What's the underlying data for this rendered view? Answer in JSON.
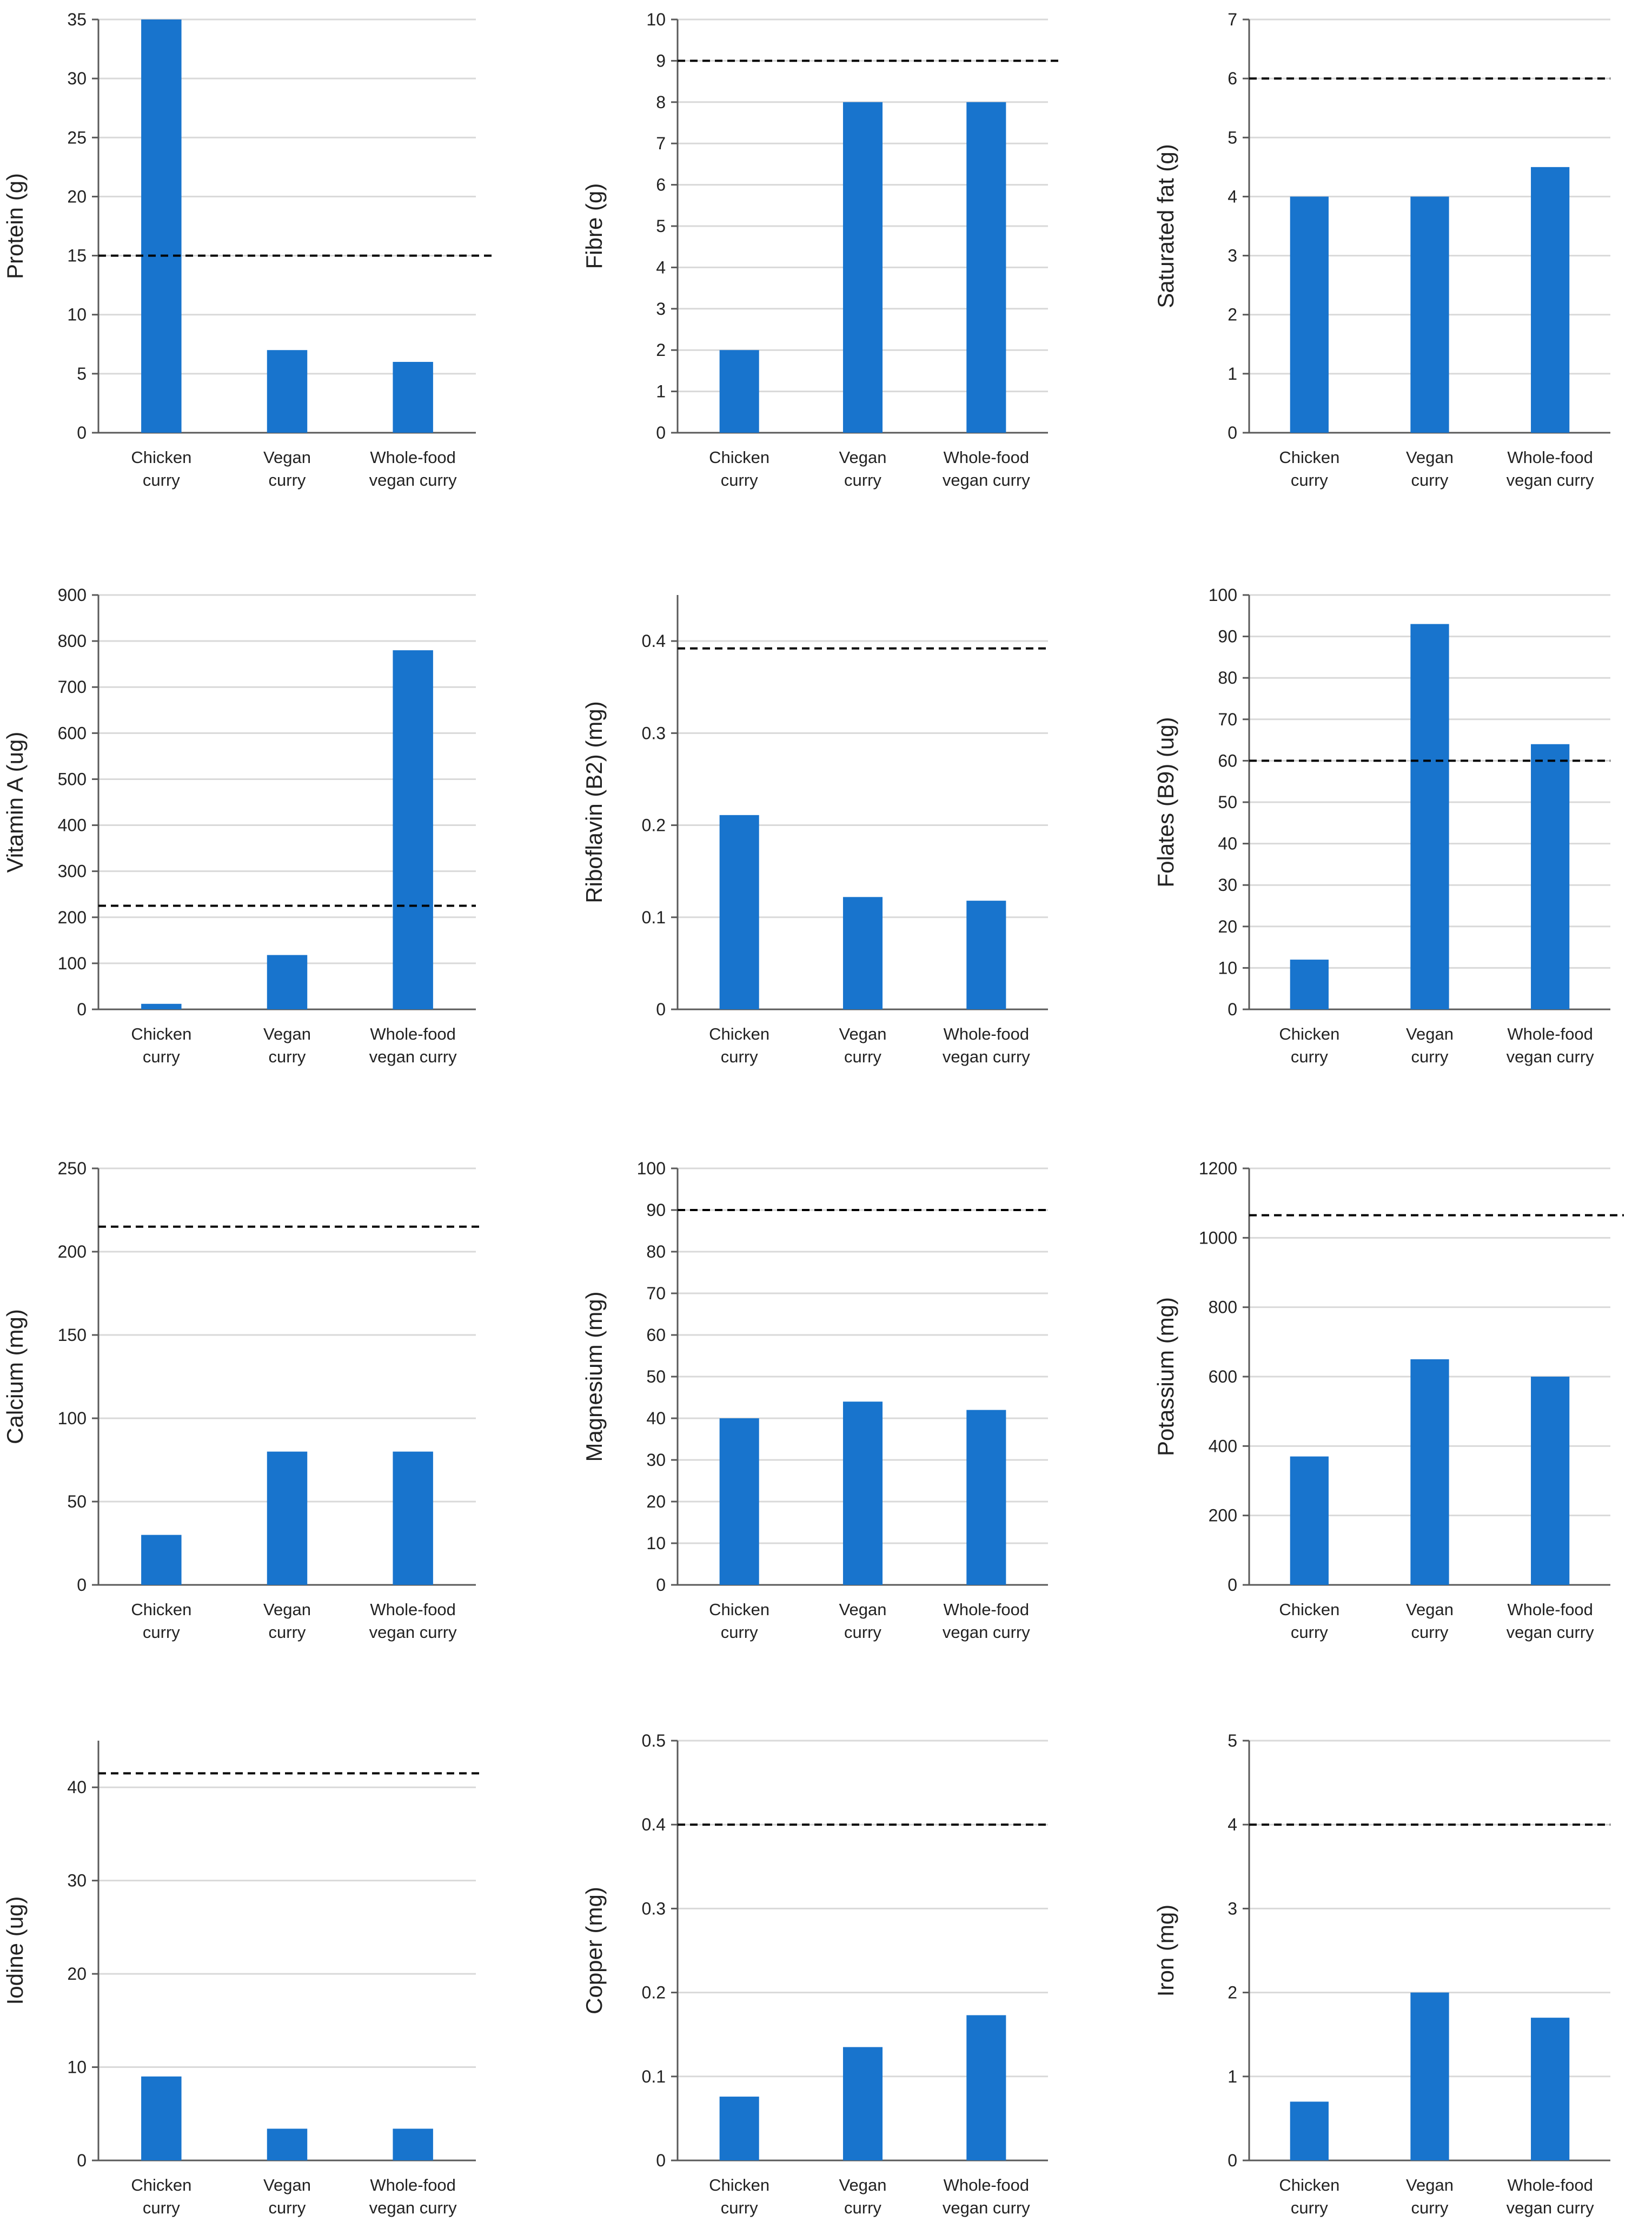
{
  "colors": {
    "bar": "#1874CD",
    "grid": "#D9D9D9",
    "axis": "#595959",
    "reference": "#000000"
  },
  "categories": [
    [
      "Chicken",
      "curry"
    ],
    [
      "Vegan",
      "curry"
    ],
    [
      "Whole-food",
      "vegan curry"
    ]
  ],
  "chart_data": [
    {
      "type": "bar",
      "ylabel": "Protein (g)",
      "categories": [
        "Chicken curry",
        "Vegan curry",
        "Whole-food vegan curry"
      ],
      "values": [
        35,
        7,
        6
      ],
      "ylim": [
        0,
        35
      ],
      "yticks": [
        "0",
        "5",
        "10",
        "15",
        "20",
        "25",
        "30",
        "35"
      ],
      "reference_line": 15
    },
    {
      "type": "bar",
      "ylabel": "Fibre (g)",
      "categories": [
        "Chicken curry",
        "Vegan curry",
        "Whole-food vegan curry"
      ],
      "values": [
        2,
        8,
        8
      ],
      "ylim": [
        0,
        10
      ],
      "yticks": [
        "0",
        "1",
        "2",
        "3",
        "4",
        "5",
        "6",
        "7",
        "8",
        "9",
        "10"
      ],
      "reference_line": 9
    },
    {
      "type": "bar",
      "ylabel": "Saturated fat (g)",
      "categories": [
        "Chicken curry",
        "Vegan curry",
        "Whole-food vegan curry"
      ],
      "values": [
        4,
        4,
        4.5
      ],
      "ylim": [
        0,
        7
      ],
      "yticks": [
        "0",
        "1",
        "2",
        "3",
        "4",
        "5",
        "6",
        "7"
      ],
      "reference_line": 6
    },
    {
      "type": "bar",
      "ylabel": "Vitamin A (ug)",
      "categories": [
        "Chicken curry",
        "Vegan curry",
        "Whole-food vegan curry"
      ],
      "values": [
        12,
        118,
        780
      ],
      "ylim": [
        0,
        900
      ],
      "yticks": [
        "0",
        "100",
        "200",
        "300",
        "400",
        "500",
        "600",
        "700",
        "800",
        "900"
      ],
      "reference_line": 225
    },
    {
      "type": "bar",
      "ylabel": "Riboflavin (B2) (mg)",
      "categories": [
        "Chicken curry",
        "Vegan curry",
        "Whole-food vegan curry"
      ],
      "values": [
        0.211,
        0.122,
        0.118
      ],
      "ylim": [
        0,
        0.45
      ],
      "yticks": [
        "0",
        "0.1",
        "0.2",
        "0.3",
        "0.4"
      ],
      "reference_line": 0.392
    },
    {
      "type": "bar",
      "ylabel": "Folates (B9)  (ug)",
      "categories": [
        "Chicken curry",
        "Vegan curry",
        "Whole-food vegan curry"
      ],
      "values": [
        12,
        93,
        64
      ],
      "ylim": [
        0,
        100
      ],
      "yticks": [
        "0",
        "10",
        "20",
        "30",
        "40",
        "50",
        "60",
        "70",
        "80",
        "90",
        "100"
      ],
      "reference_line": 60
    },
    {
      "type": "bar",
      "ylabel": "Calcium (mg)",
      "categories": [
        "Chicken curry",
        "Vegan curry",
        "Whole-food vegan curry"
      ],
      "values": [
        30,
        80,
        80
      ],
      "ylim": [
        0,
        250
      ],
      "yticks": [
        "0",
        "50",
        "100",
        "150",
        "200",
        "250"
      ],
      "reference_line": 215
    },
    {
      "type": "bar",
      "ylabel": "Magnesium (mg)",
      "categories": [
        "Chicken curry",
        "Vegan curry",
        "Whole-food vegan curry"
      ],
      "values": [
        40,
        44,
        42
      ],
      "ylim": [
        0,
        100
      ],
      "yticks": [
        "0",
        "10",
        "20",
        "30",
        "40",
        "50",
        "60",
        "70",
        "80",
        "90",
        "100"
      ],
      "reference_line": 90
    },
    {
      "type": "bar",
      "ylabel": "Potassium (mg)",
      "categories": [
        "Chicken curry",
        "Vegan curry",
        "Whole-food vegan curry"
      ],
      "values": [
        370,
        650,
        600
      ],
      "ylim": [
        0,
        1200
      ],
      "yticks": [
        "0",
        "200",
        "400",
        "600",
        "800",
        "1000",
        "1200"
      ],
      "reference_line": 1065
    },
    {
      "type": "bar",
      "ylabel": "Iodine (ug)",
      "categories": [
        "Chicken curry",
        "Vegan curry",
        "Whole-food vegan curry"
      ],
      "values": [
        9,
        3.4,
        3.4
      ],
      "ylim": [
        0,
        45
      ],
      "yticks": [
        "0",
        "10",
        "20",
        "30",
        "40"
      ],
      "reference_line": 41.5
    },
    {
      "type": "bar",
      "ylabel": "Copper (mg)",
      "categories": [
        "Chicken curry",
        "Vegan curry",
        "Whole-food vegan curry"
      ],
      "values": [
        0.076,
        0.135,
        0.173
      ],
      "ylim": [
        0,
        0.5
      ],
      "yticks": [
        "0",
        "0.1",
        "0.2",
        "0.3",
        "0.4",
        "0.5"
      ],
      "reference_line": 0.4
    },
    {
      "type": "bar",
      "ylabel": "Iron (mg)",
      "categories": [
        "Chicken curry",
        "Vegan curry",
        "Whole-food vegan curry"
      ],
      "values": [
        0.7,
        2,
        1.7
      ],
      "ylim": [
        0,
        5
      ],
      "yticks": [
        "0",
        "1",
        "2",
        "3",
        "4",
        "5"
      ],
      "reference_line": 4
    }
  ]
}
